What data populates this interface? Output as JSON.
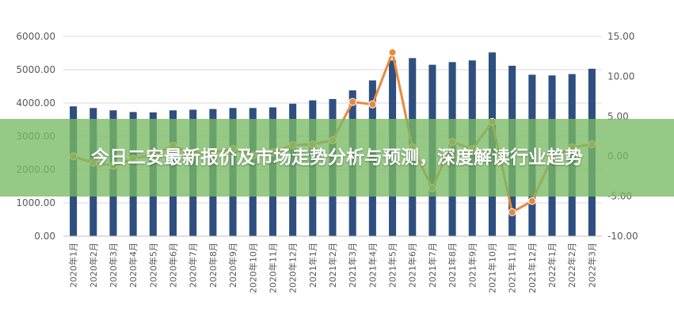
{
  "banner": {
    "title": "今日二安最新报价及市场走势分析与预测，深度解读行业趋势"
  },
  "colors": {
    "bar": "#2e4f7f",
    "line": "#e8893c",
    "banner": "#78b964",
    "axis_text": "#595959"
  },
  "chart_data": {
    "type": "bar",
    "title": "",
    "xlabel": "",
    "ylabel": "",
    "categories": [
      "2020年1月",
      "2020年2月",
      "2020年3月",
      "2020年4月",
      "2020年5月",
      "2020年6月",
      "2020年7月",
      "2020年8月",
      "2020年9月",
      "2020年10月",
      "2020年11月",
      "2020年12月",
      "2021年1月",
      "2021年2月",
      "2021年3月",
      "2021年4月",
      "2021年5月",
      "2021年6月",
      "2021年7月",
      "2021年8月",
      "2021年9月",
      "2021年10月",
      "2021年11月",
      "2021年12月",
      "2022年1月",
      "2022年2月",
      "2022年3月"
    ],
    "series": [
      {
        "type": "bar",
        "axis": "left",
        "values": [
          3900,
          3850,
          3780,
          3730,
          3720,
          3780,
          3800,
          3820,
          3850,
          3850,
          3870,
          3980,
          4080,
          4120,
          4380,
          4680,
          5280,
          5350,
          5150,
          5230,
          5280,
          5520,
          5120,
          4850,
          4830,
          4870,
          5030
        ]
      },
      {
        "type": "line",
        "axis": "right",
        "values": [
          0,
          -0.8,
          -1.2,
          -0.3,
          0.2,
          1.3,
          0.3,
          0.5,
          0.9,
          0.1,
          0.5,
          1.4,
          1.5,
          2.0,
          6.8,
          6.5,
          13.0,
          1.1,
          -4.0,
          1.8,
          0.9,
          4.3,
          -7.0,
          -5.6,
          -0.2,
          1.1,
          1.5
        ]
      }
    ],
    "y_left": {
      "min": 0,
      "max": 6000,
      "ticks": [
        "0.00",
        "1000.00",
        "2000.00",
        "3000.00",
        "4000.00",
        "5000.00",
        "6000.00"
      ]
    },
    "y_right": {
      "min": -10,
      "max": 15,
      "ticks": [
        "-10.00",
        "-5.00",
        "0.00",
        "5.00",
        "10.00",
        "15.00"
      ]
    },
    "grid": true,
    "legend": "none"
  }
}
